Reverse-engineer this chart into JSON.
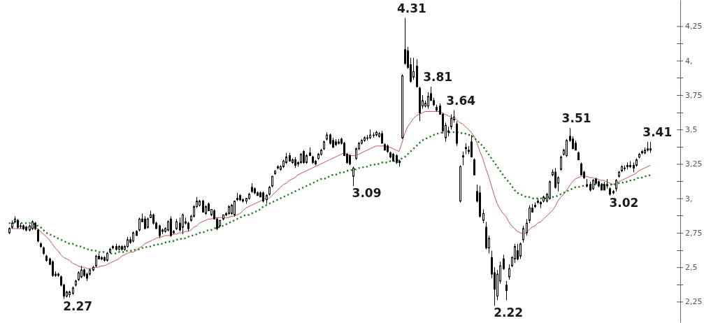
{
  "chart_data": {
    "type": "candlestick",
    "categories": [
      null,
      null,
      null,
      null,
      null,
      null,
      null,
      null,
      null,
      null,
      null,
      null,
      null,
      null,
      null,
      null,
      null,
      null,
      null,
      null,
      null,
      null,
      null,
      null,
      null,
      null,
      null,
      null,
      null,
      null,
      null,
      null,
      null,
      null,
      null,
      null,
      null,
      null,
      null,
      null,
      null,
      null,
      null,
      null,
      null,
      null,
      null,
      null,
      null,
      null,
      null,
      null,
      null,
      null,
      null,
      null,
      null,
      null,
      null,
      null,
      null,
      null,
      null,
      null,
      null,
      null,
      null,
      null,
      null,
      null,
      null,
      null,
      null,
      null,
      null,
      null,
      null,
      null,
      null,
      null,
      null,
      null,
      null,
      null,
      null,
      null,
      null,
      null,
      null,
      null,
      null,
      null,
      null,
      null,
      null,
      null,
      null,
      null,
      null,
      null,
      null,
      null,
      null,
      null,
      null,
      null,
      null,
      null,
      null,
      null,
      null,
      null,
      null,
      null,
      null,
      null,
      null,
      null,
      null,
      null,
      null,
      null,
      null,
      null,
      null,
      null,
      null,
      null,
      null,
      null,
      null,
      null,
      null,
      null,
      null,
      null,
      null,
      null,
      null,
      null,
      null,
      null,
      null,
      null,
      null,
      null,
      null,
      null,
      null,
      null,
      null,
      null,
      null,
      null,
      null,
      null,
      null,
      null,
      null,
      null,
      null,
      null,
      null,
      null,
      null,
      null,
      null,
      null,
      null,
      null,
      null,
      null,
      null,
      null,
      null,
      null,
      null,
      null,
      null,
      null,
      null,
      null,
      null,
      null,
      null,
      null,
      null,
      null,
      null,
      null,
      null,
      null,
      null,
      null,
      null,
      null,
      null,
      null,
      null,
      null,
      null,
      null,
      null,
      null,
      null,
      null,
      null,
      null,
      null,
      null,
      null,
      null,
      null,
      null,
      null,
      null,
      null,
      null,
      null,
      null,
      null,
      null,
      null
    ],
    "ohlc": [
      [
        2.75,
        2.79,
        2.74,
        2.78
      ],
      [
        2.79,
        2.84,
        2.78,
        2.82
      ],
      [
        2.83,
        2.87,
        2.82,
        2.85
      ],
      [
        2.84,
        2.85,
        2.78,
        2.79
      ],
      [
        2.8,
        2.82,
        2.78,
        2.8
      ],
      [
        2.8,
        2.81,
        2.77,
        2.78
      ],
      [
        2.79,
        2.8,
        2.76,
        2.77
      ],
      [
        2.77,
        2.81,
        2.76,
        2.8
      ],
      [
        2.78,
        2.84,
        2.77,
        2.83
      ],
      [
        2.82,
        2.83,
        2.77,
        2.78
      ],
      [
        2.77,
        2.78,
        2.68,
        2.69
      ],
      [
        2.67,
        2.68,
        2.64,
        2.65
      ],
      [
        2.64,
        2.65,
        2.59,
        2.6
      ],
      [
        2.58,
        2.59,
        2.54,
        2.55
      ],
      [
        2.56,
        2.57,
        2.52,
        2.52
      ],
      [
        2.54,
        2.55,
        2.43,
        2.44
      ],
      [
        2.44,
        2.47,
        2.43,
        2.45
      ],
      [
        2.45,
        2.46,
        2.43,
        2.44
      ],
      [
        2.43,
        2.44,
        2.36,
        2.37
      ],
      [
        2.37,
        2.38,
        2.27,
        2.29
      ],
      [
        2.29,
        2.33,
        2.28,
        2.32
      ],
      [
        2.3,
        2.33,
        2.28,
        2.32
      ],
      [
        2.31,
        2.36,
        2.3,
        2.35
      ],
      [
        2.37,
        2.41,
        2.36,
        2.4
      ],
      [
        2.41,
        2.47,
        2.4,
        2.46
      ],
      [
        2.43,
        2.51,
        2.42,
        2.48
      ],
      [
        2.48,
        2.49,
        2.43,
        2.44
      ],
      [
        2.45,
        2.46,
        2.4,
        2.42
      ],
      [
        2.45,
        2.49,
        2.44,
        2.48
      ],
      [
        2.48,
        2.51,
        2.47,
        2.5
      ],
      [
        2.51,
        2.59,
        2.5,
        2.58
      ],
      [
        2.58,
        2.6,
        2.56,
        2.56
      ],
      [
        2.57,
        2.58,
        2.55,
        2.56
      ],
      [
        2.57,
        2.58,
        2.54,
        2.55
      ],
      [
        2.55,
        2.61,
        2.54,
        2.6
      ],
      [
        2.61,
        2.64,
        2.6,
        2.63
      ],
      [
        2.65,
        2.66,
        2.63,
        2.64
      ],
      [
        2.65,
        2.67,
        2.62,
        2.63
      ],
      [
        2.63,
        2.66,
        2.62,
        2.65
      ],
      [
        2.65,
        2.66,
        2.62,
        2.63
      ],
      [
        2.63,
        2.66,
        2.62,
        2.65
      ],
      [
        2.65,
        2.72,
        2.64,
        2.7
      ],
      [
        2.7,
        2.72,
        2.67,
        2.68
      ],
      [
        2.69,
        2.76,
        2.68,
        2.75
      ],
      [
        2.76,
        2.77,
        2.73,
        2.73
      ],
      [
        2.77,
        2.86,
        2.76,
        2.85
      ],
      [
        2.85,
        2.89,
        2.83,
        2.83
      ],
      [
        2.85,
        2.87,
        2.78,
        2.78
      ],
      [
        2.79,
        2.86,
        2.78,
        2.85
      ],
      [
        2.86,
        2.91,
        2.86,
        2.88
      ],
      [
        2.88,
        2.89,
        2.81,
        2.82
      ],
      [
        2.82,
        2.83,
        2.78,
        2.78
      ],
      [
        2.8,
        2.81,
        2.71,
        2.73
      ],
      [
        2.76,
        2.78,
        2.74,
        2.77
      ],
      [
        2.76,
        2.79,
        2.75,
        2.78
      ],
      [
        2.77,
        2.84,
        2.76,
        2.83
      ],
      [
        2.85,
        2.87,
        2.72,
        2.73
      ],
      [
        2.75,
        2.77,
        2.74,
        2.76
      ],
      [
        2.78,
        2.85,
        2.77,
        2.83
      ],
      [
        2.82,
        2.86,
        2.76,
        2.77
      ],
      [
        2.79,
        2.89,
        2.74,
        2.88
      ],
      [
        2.83,
        2.86,
        2.81,
        2.82
      ],
      [
        2.82,
        2.83,
        2.76,
        2.78
      ],
      [
        2.84,
        2.88,
        2.83,
        2.87
      ],
      [
        2.87,
        2.95,
        2.86,
        2.94
      ],
      [
        2.94,
        3.01,
        2.93,
        2.98
      ],
      [
        2.95,
        2.99,
        2.94,
        2.98
      ],
      [
        2.98,
        2.99,
        2.9,
        2.9
      ],
      [
        2.89,
        2.95,
        2.88,
        2.94
      ],
      [
        2.96,
        2.97,
        2.91,
        2.91
      ],
      [
        2.88,
        2.92,
        2.87,
        2.92
      ],
      [
        2.91,
        2.92,
        2.85,
        2.85
      ],
      [
        2.85,
        2.86,
        2.77,
        2.78
      ],
      [
        2.8,
        2.84,
        2.79,
        2.84
      ],
      [
        2.85,
        2.88,
        2.84,
        2.88
      ],
      [
        2.88,
        2.9,
        2.87,
        2.89
      ],
      [
        2.89,
        2.95,
        2.88,
        2.94
      ],
      [
        2.89,
        2.96,
        2.88,
        2.95
      ],
      [
        2.88,
        2.98,
        2.87,
        2.98
      ],
      [
        2.99,
        3.04,
        2.98,
        3.0
      ],
      [
        3.02,
        3.03,
        2.98,
        2.99
      ],
      [
        2.99,
        3.0,
        2.97,
        2.98
      ],
      [
        2.98,
        3.0,
        2.96,
        3.0
      ],
      [
        3.0,
        3.04,
        2.99,
        3.03
      ],
      [
        3.08,
        3.11,
        3.04,
        3.05
      ],
      [
        3.07,
        3.08,
        3.03,
        3.04
      ],
      [
        3.04,
        3.05,
        3.02,
        3.02
      ],
      [
        3.04,
        3.05,
        3.01,
        3.01
      ],
      [
        3.04,
        3.05,
        2.97,
        2.98
      ],
      [
        2.99,
        3.03,
        2.96,
        3.02
      ],
      [
        3.03,
        3.09,
        3.02,
        3.08
      ],
      [
        3.09,
        3.16,
        3.08,
        3.16
      ],
      [
        3.18,
        3.2,
        3.17,
        3.2
      ],
      [
        3.22,
        3.24,
        3.21,
        3.23
      ],
      [
        3.21,
        3.24,
        3.2,
        3.23
      ],
      [
        3.23,
        3.28,
        3.22,
        3.27
      ],
      [
        3.26,
        3.33,
        3.25,
        3.3
      ],
      [
        3.31,
        3.33,
        3.27,
        3.27
      ],
      [
        3.26,
        3.29,
        3.25,
        3.28
      ],
      [
        3.28,
        3.3,
        3.22,
        3.24
      ],
      [
        3.26,
        3.27,
        3.23,
        3.25
      ],
      [
        3.26,
        3.33,
        3.25,
        3.32
      ],
      [
        3.34,
        3.35,
        3.25,
        3.26
      ],
      [
        3.26,
        3.32,
        3.25,
        3.31
      ],
      [
        3.33,
        3.37,
        3.31,
        3.31
      ],
      [
        3.3,
        3.31,
        3.25,
        3.26
      ],
      [
        3.27,
        3.28,
        3.24,
        3.25
      ],
      [
        3.29,
        3.33,
        3.28,
        3.32
      ],
      [
        3.32,
        3.36,
        3.31,
        3.35
      ],
      [
        3.36,
        3.42,
        3.35,
        3.41
      ],
      [
        3.43,
        3.48,
        3.42,
        3.46
      ],
      [
        3.46,
        3.47,
        3.39,
        3.4
      ],
      [
        3.42,
        3.44,
        3.37,
        3.37
      ],
      [
        3.41,
        3.43,
        3.38,
        3.39
      ],
      [
        3.4,
        3.43,
        3.39,
        3.41
      ],
      [
        3.43,
        3.44,
        3.39,
        3.4
      ],
      [
        3.4,
        3.41,
        3.31,
        3.31
      ],
      [
        3.32,
        3.33,
        3.25,
        3.26
      ],
      [
        3.31,
        3.32,
        3.24,
        3.25
      ],
      [
        3.16,
        3.23,
        3.09,
        3.22
      ],
      [
        3.29,
        3.37,
        3.28,
        3.36
      ],
      [
        3.36,
        3.41,
        3.35,
        3.4
      ],
      [
        3.4,
        3.43,
        3.39,
        3.42
      ],
      [
        3.42,
        3.45,
        3.41,
        3.44
      ],
      [
        3.44,
        3.46,
        3.42,
        3.44
      ],
      [
        3.44,
        3.5,
        3.43,
        3.46
      ],
      [
        3.46,
        3.48,
        3.44,
        3.46
      ],
      [
        3.46,
        3.49,
        3.45,
        3.48
      ],
      [
        3.45,
        3.48,
        3.44,
        3.47
      ],
      [
        3.47,
        3.49,
        3.4,
        3.4
      ],
      [
        3.39,
        3.4,
        3.35,
        3.35
      ],
      [
        3.38,
        3.39,
        3.33,
        3.34
      ],
      [
        3.33,
        3.34,
        3.29,
        3.3
      ],
      [
        3.32,
        3.33,
        3.27,
        3.27
      ],
      [
        3.31,
        3.32,
        3.25,
        3.26
      ],
      [
        3.27,
        3.28,
        3.23,
        3.26
      ],
      [
        3.44,
        3.9,
        3.43,
        3.89
      ],
      [
        4.08,
        4.31,
        3.97,
        3.98
      ],
      [
        4.07,
        4.1,
        3.94,
        3.95
      ],
      [
        3.97,
        4.02,
        3.84,
        3.85
      ],
      [
        3.88,
        4.02,
        3.86,
        3.92
      ],
      [
        3.96,
        4.01,
        3.81,
        3.81
      ],
      [
        3.8,
        3.81,
        3.56,
        3.62
      ],
      [
        3.67,
        3.75,
        3.65,
        3.71
      ],
      [
        3.67,
        3.71,
        3.66,
        3.69
      ],
      [
        3.67,
        3.77,
        3.65,
        3.74
      ],
      [
        3.76,
        3.81,
        3.71,
        3.71
      ],
      [
        3.71,
        3.73,
        3.67,
        3.68
      ],
      [
        3.66,
        3.68,
        3.63,
        3.64
      ],
      [
        3.67,
        3.69,
        3.61,
        3.61
      ],
      [
        3.61,
        3.62,
        3.47,
        3.49
      ],
      [
        3.44,
        3.55,
        3.41,
        3.53
      ],
      [
        3.48,
        3.52,
        3.45,
        3.49
      ],
      [
        3.52,
        3.61,
        3.5,
        3.58
      ],
      [
        3.57,
        3.64,
        3.55,
        3.59
      ],
      [
        3.54,
        3.56,
        3.38,
        3.4
      ],
      [
        2.98,
        3.24,
        2.97,
        3.23
      ],
      [
        3.3,
        3.34,
        3.24,
        3.31
      ],
      [
        3.36,
        3.4,
        3.32,
        3.37
      ],
      [
        3.35,
        3.38,
        3.32,
        3.34
      ],
      [
        3.41,
        3.46,
        3.3,
        3.3
      ],
      [
        3.28,
        3.29,
        3.17,
        3.17
      ],
      [
        3.05,
        3.1,
        2.97,
        2.98
      ],
      [
        3.04,
        3.09,
        2.86,
        2.87
      ],
      [
        2.84,
        2.92,
        2.82,
        2.89
      ],
      [
        2.79,
        2.83,
        2.63,
        2.64
      ],
      [
        2.64,
        2.73,
        2.6,
        2.71
      ],
      [
        2.57,
        2.62,
        2.42,
        2.45
      ],
      [
        2.46,
        2.5,
        2.22,
        2.34
      ],
      [
        2.29,
        2.48,
        2.26,
        2.45
      ],
      [
        2.4,
        2.54,
        2.38,
        2.51
      ],
      [
        2.56,
        2.59,
        2.48,
        2.49
      ],
      [
        2.37,
        2.4,
        2.26,
        2.33
      ],
      [
        2.43,
        2.52,
        2.41,
        2.49
      ],
      [
        2.51,
        2.58,
        2.5,
        2.57
      ],
      [
        2.56,
        2.67,
        2.53,
        2.65
      ],
      [
        2.62,
        2.67,
        2.55,
        2.56
      ],
      [
        2.58,
        2.68,
        2.56,
        2.67
      ],
      [
        2.7,
        2.8,
        2.68,
        2.78
      ],
      [
        2.75,
        2.85,
        2.73,
        2.82
      ],
      [
        2.84,
        2.95,
        2.82,
        2.93
      ],
      [
        2.93,
        2.96,
        2.9,
        2.9
      ],
      [
        2.94,
        2.97,
        2.93,
        2.95
      ],
      [
        2.98,
        3.0,
        2.96,
        2.97
      ],
      [
        2.96,
        2.98,
        2.93,
        2.97
      ],
      [
        2.98,
        3.02,
        2.97,
        3.01
      ],
      [
        2.98,
        3.04,
        2.97,
        3.03
      ],
      [
        3.0,
        3.13,
        2.99,
        3.12
      ],
      [
        3.17,
        3.21,
        3.16,
        3.19
      ],
      [
        3.19,
        3.22,
        3.07,
        3.08
      ],
      [
        3.11,
        3.16,
        3.05,
        3.15
      ],
      [
        3.21,
        3.31,
        3.2,
        3.3
      ],
      [
        3.32,
        3.36,
        3.31,
        3.35
      ],
      [
        3.31,
        3.43,
        3.3,
        3.42
      ],
      [
        3.45,
        3.51,
        3.41,
        3.42
      ],
      [
        3.43,
        3.45,
        3.36,
        3.36
      ],
      [
        3.4,
        3.42,
        3.35,
        3.35
      ],
      [
        3.33,
        3.34,
        3.28,
        3.28
      ],
      [
        3.25,
        3.26,
        3.17,
        3.17
      ],
      [
        3.19,
        3.2,
        3.14,
        3.15
      ],
      [
        3.1,
        3.14,
        3.08,
        3.09
      ],
      [
        3.1,
        3.12,
        3.05,
        3.06
      ],
      [
        3.07,
        3.14,
        3.06,
        3.13
      ],
      [
        3.14,
        3.15,
        3.1,
        3.11
      ],
      [
        3.12,
        3.13,
        3.08,
        3.09
      ],
      [
        3.1,
        3.11,
        3.06,
        3.06
      ],
      [
        3.1,
        3.12,
        3.06,
        3.06
      ],
      [
        3.09,
        3.14,
        3.07,
        3.1
      ],
      [
        3.07,
        3.08,
        3.02,
        3.03
      ],
      [
        3.05,
        3.06,
        3.03,
        3.04
      ],
      [
        3.07,
        3.14,
        3.05,
        3.13
      ],
      [
        3.16,
        3.2,
        3.15,
        3.19
      ],
      [
        3.2,
        3.24,
        3.19,
        3.23
      ],
      [
        3.22,
        3.24,
        3.2,
        3.22
      ],
      [
        3.23,
        3.26,
        3.21,
        3.24
      ],
      [
        3.24,
        3.27,
        3.22,
        3.23
      ],
      [
        3.24,
        3.26,
        3.19,
        3.22
      ],
      [
        3.24,
        3.29,
        3.23,
        3.28
      ],
      [
        3.3,
        3.33,
        3.29,
        3.32
      ],
      [
        3.33,
        3.35,
        3.32,
        3.34
      ],
      [
        3.33,
        3.37,
        3.32,
        3.35
      ],
      [
        3.36,
        3.41,
        3.34,
        3.35
      ],
      [
        3.35,
        3.41,
        3.33,
        3.36
      ]
    ],
    "series": [
      {
        "type": "line",
        "color": "#c8505c",
        "line_style": "solid",
        "values": [
          2.78,
          2.78,
          2.78,
          2.78,
          2.78,
          2.78,
          2.79,
          2.79,
          2.79,
          2.79,
          2.78,
          2.76,
          2.74,
          2.72,
          2.7,
          2.67,
          2.64,
          2.62,
          2.59,
          2.57,
          2.56,
          2.55,
          2.53,
          2.52,
          2.51,
          2.5,
          2.5,
          2.49,
          2.49,
          2.49,
          2.5,
          2.5,
          2.51,
          2.51,
          2.52,
          2.53,
          2.54,
          2.55,
          2.56,
          2.58,
          2.59,
          2.6,
          2.61,
          2.61,
          2.62,
          2.64,
          2.65,
          2.67,
          2.68,
          2.69,
          2.7,
          2.71,
          2.72,
          2.72,
          2.73,
          2.73,
          2.73,
          2.74,
          2.74,
          2.75,
          2.75,
          2.76,
          2.76,
          2.77,
          2.79,
          2.8,
          2.82,
          2.83,
          2.84,
          2.85,
          2.85,
          2.86,
          2.86,
          2.86,
          2.86,
          2.86,
          2.86,
          2.87,
          2.87,
          2.88,
          2.89,
          2.91,
          2.93,
          2.94,
          2.95,
          2.96,
          2.97,
          2.98,
          2.99,
          3.0,
          3.0,
          3.02,
          3.04,
          3.06,
          3.08,
          3.1,
          3.11,
          3.13,
          3.14,
          3.15,
          3.17,
          3.18,
          3.19,
          3.2,
          3.21,
          3.22,
          3.23,
          3.24,
          3.25,
          3.26,
          3.27,
          3.28,
          3.29,
          3.3,
          3.31,
          3.32,
          3.33,
          3.32,
          3.31,
          3.31,
          3.31,
          3.32,
          3.33,
          3.34,
          3.35,
          3.36,
          3.37,
          3.38,
          3.38,
          3.38,
          3.38,
          3.37,
          3.37,
          3.36,
          3.35,
          3.34,
          3.4,
          3.47,
          3.52,
          3.55,
          3.58,
          3.6,
          3.61,
          3.62,
          3.63,
          3.63,
          3.63,
          3.63,
          3.63,
          3.63,
          3.62,
          3.61,
          3.6,
          3.59,
          3.58,
          3.57,
          3.55,
          3.54,
          3.52,
          3.5,
          3.48,
          3.45,
          3.4,
          3.34,
          3.29,
          3.22,
          3.16,
          3.09,
          3.02,
          2.96,
          2.92,
          2.89,
          2.87,
          2.83,
          2.8,
          2.78,
          2.76,
          2.75,
          2.74,
          2.75,
          2.77,
          2.79,
          2.8,
          2.82,
          2.83,
          2.85,
          2.87,
          2.89,
          2.91,
          2.94,
          2.98,
          3.01,
          3.03,
          3.06,
          3.09,
          3.12,
          3.14,
          3.15,
          3.16,
          3.16,
          3.16,
          3.15,
          3.15,
          3.14,
          3.14,
          3.13,
          3.13,
          3.12,
          3.11,
          3.1,
          3.11,
          3.12,
          3.13,
          3.14,
          3.15,
          3.16,
          3.17,
          3.18,
          3.2,
          3.21,
          3.22,
          3.23,
          3.24
        ]
      },
      {
        "type": "line",
        "color": "#1a7a1a",
        "line_style": "dotted",
        "values": [
          2.82,
          2.82,
          2.82,
          2.82,
          2.82,
          2.82,
          2.82,
          2.82,
          2.82,
          2.81,
          2.8,
          2.79,
          2.77,
          2.75,
          2.74,
          2.73,
          2.72,
          2.71,
          2.7,
          2.69,
          2.68,
          2.67,
          2.67,
          2.66,
          2.65,
          2.65,
          2.64,
          2.63,
          2.63,
          2.62,
          2.62,
          2.61,
          2.61,
          2.61,
          2.6,
          2.6,
          2.6,
          2.6,
          2.61,
          2.61,
          2.61,
          2.62,
          2.62,
          2.62,
          2.63,
          2.63,
          2.64,
          2.64,
          2.65,
          2.65,
          2.66,
          2.66,
          2.67,
          2.67,
          2.68,
          2.68,
          2.69,
          2.69,
          2.7,
          2.7,
          2.71,
          2.71,
          2.72,
          2.73,
          2.73,
          2.74,
          2.75,
          2.75,
          2.76,
          2.77,
          2.77,
          2.78,
          2.79,
          2.79,
          2.8,
          2.81,
          2.82,
          2.83,
          2.84,
          2.85,
          2.86,
          2.87,
          2.88,
          2.88,
          2.89,
          2.9,
          2.91,
          2.92,
          2.94,
          2.95,
          2.96,
          2.97,
          2.98,
          2.99,
          3.0,
          3.01,
          3.02,
          3.03,
          3.04,
          3.05,
          3.06,
          3.07,
          3.08,
          3.09,
          3.1,
          3.11,
          3.12,
          3.13,
          3.14,
          3.14,
          3.15,
          3.16,
          3.17,
          3.17,
          3.18,
          3.19,
          3.19,
          3.2,
          3.2,
          3.21,
          3.21,
          3.22,
          3.22,
          3.23,
          3.23,
          3.24,
          3.24,
          3.25,
          3.25,
          3.26,
          3.26,
          3.26,
          3.27,
          3.27,
          3.27,
          3.28,
          3.29,
          3.3,
          3.32,
          3.34,
          3.36,
          3.38,
          3.4,
          3.42,
          3.43,
          3.44,
          3.45,
          3.46,
          3.47,
          3.47,
          3.48,
          3.48,
          3.48,
          3.48,
          3.48,
          3.48,
          3.48,
          3.47,
          3.47,
          3.46,
          3.46,
          3.44,
          3.42,
          3.4,
          3.38,
          3.35,
          3.32,
          3.29,
          3.26,
          3.23,
          3.2,
          3.17,
          3.14,
          3.12,
          3.09,
          3.06,
          3.04,
          3.03,
          3.02,
          3.01,
          3.01,
          3.0,
          3.0,
          3.0,
          3.0,
          3.0,
          3.0,
          3.01,
          3.01,
          3.01,
          3.02,
          3.03,
          3.04,
          3.05,
          3.06,
          3.07,
          3.08,
          3.08,
          3.09,
          3.09,
          3.09,
          3.1,
          3.1,
          3.1,
          3.1,
          3.1,
          3.1,
          3.1,
          3.1,
          3.1,
          3.1,
          3.11,
          3.11,
          3.12,
          3.12,
          3.13,
          3.13,
          3.14,
          3.15,
          3.15,
          3.16,
          3.16,
          3.17
        ]
      }
    ],
    "ylim": [
      2.1,
      4.44
    ],
    "yticks": [
      {
        "value": 2.25,
        "label": "2,25"
      },
      {
        "value": 2.5,
        "label": "2,5"
      },
      {
        "value": 2.75,
        "label": "2,75"
      },
      {
        "value": 3,
        "label": "3,"
      },
      {
        "value": 3.25,
        "label": "3,25"
      },
      {
        "value": 3.5,
        "label": "3,5"
      },
      {
        "value": 3.75,
        "label": "3,75"
      },
      {
        "value": 4,
        "label": "4,"
      },
      {
        "value": 4.25,
        "label": "4,25"
      }
    ],
    "tick_labels": "y",
    "annotations": [
      "2.27",
      "3.09",
      "4.31",
      "3.81",
      "3.64",
      "2.22",
      "3.51",
      "3.02",
      "3.41"
    ]
  }
}
